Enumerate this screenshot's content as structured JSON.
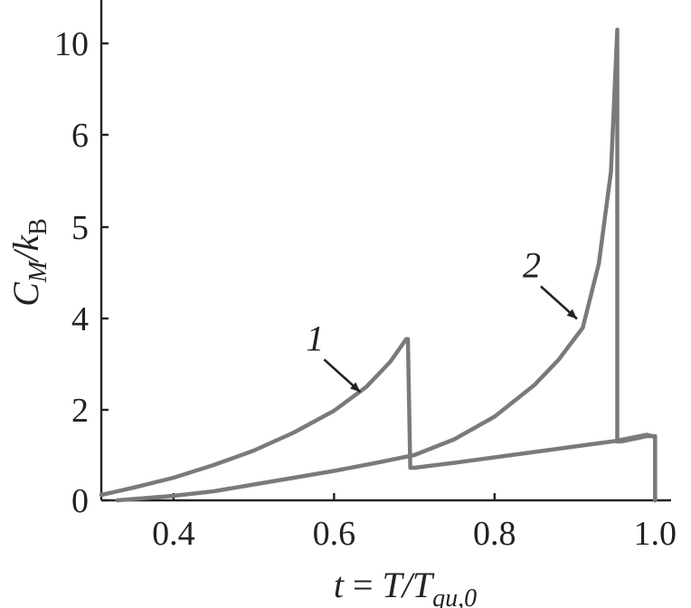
{
  "chart_data": {
    "type": "line",
    "xlabel": "t = T/T",
    "xlabel_sub": "qu,0",
    "ylabel": "C",
    "ylabel_sub": "M",
    "ylabel_tail": "/k",
    "ylabel_tail_sub": "B",
    "x_ticks": [
      {
        "value": 0.4,
        "label": "0.4"
      },
      {
        "value": 0.6,
        "label": "0.6"
      },
      {
        "value": 0.8,
        "label": "0.8"
      },
      {
        "value": 1.0,
        "label": "1.0"
      }
    ],
    "y_ticks": [
      {
        "value": 0,
        "label": "0"
      },
      {
        "value": 2,
        "label": "2"
      },
      {
        "value": 4,
        "label": "4"
      },
      {
        "value": 5,
        "label": "5"
      },
      {
        "value": 6,
        "label": "6"
      },
      {
        "value": 10,
        "label": "10"
      }
    ],
    "xlim": [
      0.31,
      1.02
    ],
    "grid": false,
    "series": [
      {
        "name": "1",
        "x": [
          0.31,
          0.35,
          0.4,
          0.45,
          0.5,
          0.55,
          0.6,
          0.64,
          0.67,
          0.69,
          0.692,
          0.695,
          0.7,
          0.75,
          0.8,
          0.85,
          0.9,
          0.95,
          0.99,
          1.0,
          1.0
        ],
        "y": [
          0.12,
          0.28,
          0.5,
          0.78,
          1.1,
          1.5,
          1.98,
          2.5,
          3.05,
          3.55,
          3.55,
          0.72,
          0.72,
          0.83,
          0.95,
          1.07,
          1.19,
          1.31,
          1.45,
          1.4,
          0.0
        ]
      },
      {
        "name": "2",
        "x": [
          0.33,
          0.4,
          0.45,
          0.5,
          0.55,
          0.6,
          0.65,
          0.7,
          0.75,
          0.8,
          0.85,
          0.88,
          0.91,
          0.93,
          0.945,
          0.953,
          0.953,
          0.955,
          0.96,
          0.99,
          1.0,
          1.0
        ],
        "y": [
          0.0,
          0.1,
          0.2,
          0.35,
          0.5,
          0.65,
          0.82,
          1.0,
          1.35,
          1.85,
          2.55,
          3.1,
          3.8,
          4.6,
          5.6,
          10.3,
          1.3,
          1.3,
          1.31,
          1.42,
          1.42,
          0.0
        ]
      }
    ],
    "annotations": [
      {
        "text": "1",
        "target_series": "1",
        "x": 0.635,
        "y": 2.35
      },
      {
        "text": "2",
        "target_series": "2",
        "x": 0.905,
        "y": 3.95
      }
    ]
  }
}
